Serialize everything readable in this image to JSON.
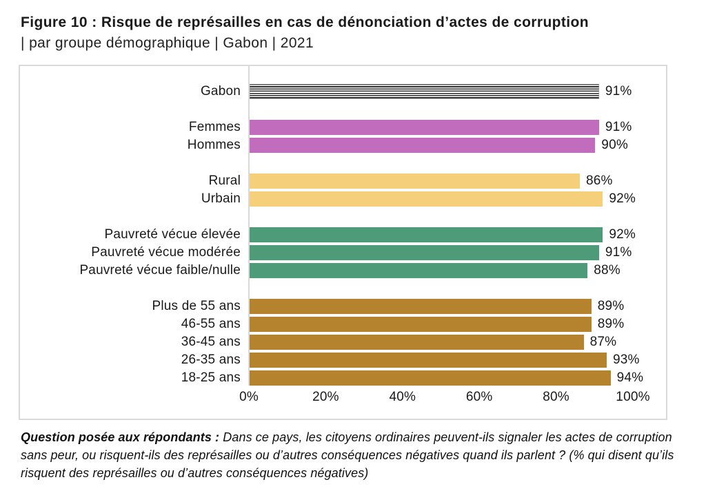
{
  "title": {
    "line1": "Figure 10 : Risque de représailles en cas de dénonciation d’actes de corruption",
    "line2": "| par groupe démographique | Gabon | 2021"
  },
  "footer": {
    "lead": "Question posée aux répondants : ",
    "text": "Dans ce pays, les citoyens ordinaires peuvent-ils signaler les actes de corruption sans peur, ou risquent-ils des représailles ou d’autres conséquences négatives quand ils parlent ? (% qui disent qu’ils risquent des représailles ou d’autres conséquences négatives)"
  },
  "colors": {
    "striped_bar_line": "#2e2e2e",
    "purple": "#c26cbe",
    "yellow": "#f6cf7a",
    "green": "#4e9b79",
    "brown": "#b5822e",
    "box_border": "#d9d9d9",
    "text": "#1a1a1a"
  },
  "chart_data": {
    "type": "bar",
    "orientation": "horizontal",
    "title": "Figure 10 : Risque de représailles en cas de dénonciation d’actes de corruption | par groupe démographique | Gabon | 2021",
    "xlabel": "",
    "ylabel": "",
    "xlim": [
      0,
      100
    ],
    "x_ticks": [
      "0%",
      "20%",
      "40%",
      "60%",
      "80%",
      "100%"
    ],
    "grid": false,
    "legend": "none",
    "value_suffix": "%",
    "groups": [
      {
        "striped": true,
        "color": "striped",
        "items": [
          {
            "label": "Gabon",
            "value": 91
          }
        ]
      },
      {
        "striped": false,
        "color": "#c26cbe",
        "items": [
          {
            "label": "Femmes",
            "value": 91
          },
          {
            "label": "Hommes",
            "value": 90
          }
        ]
      },
      {
        "striped": false,
        "color": "#f6cf7a",
        "items": [
          {
            "label": "Rural",
            "value": 86
          },
          {
            "label": "Urbain",
            "value": 92
          }
        ]
      },
      {
        "striped": false,
        "color": "#4e9b79",
        "items": [
          {
            "label": "Pauvreté vécue élevée",
            "value": 92
          },
          {
            "label": "Pauvreté vécue modérée",
            "value": 91
          },
          {
            "label": "Pauvreté vécue faible/nulle",
            "value": 88
          }
        ]
      },
      {
        "striped": false,
        "color": "#b5822e",
        "items": [
          {
            "label": "Plus de 55 ans",
            "value": 89
          },
          {
            "label": "46-55 ans",
            "value": 89
          },
          {
            "label": "36-45 ans",
            "value": 87
          },
          {
            "label": "26-35 ans",
            "value": 93
          },
          {
            "label": "18-25 ans",
            "value": 94
          }
        ]
      }
    ]
  }
}
